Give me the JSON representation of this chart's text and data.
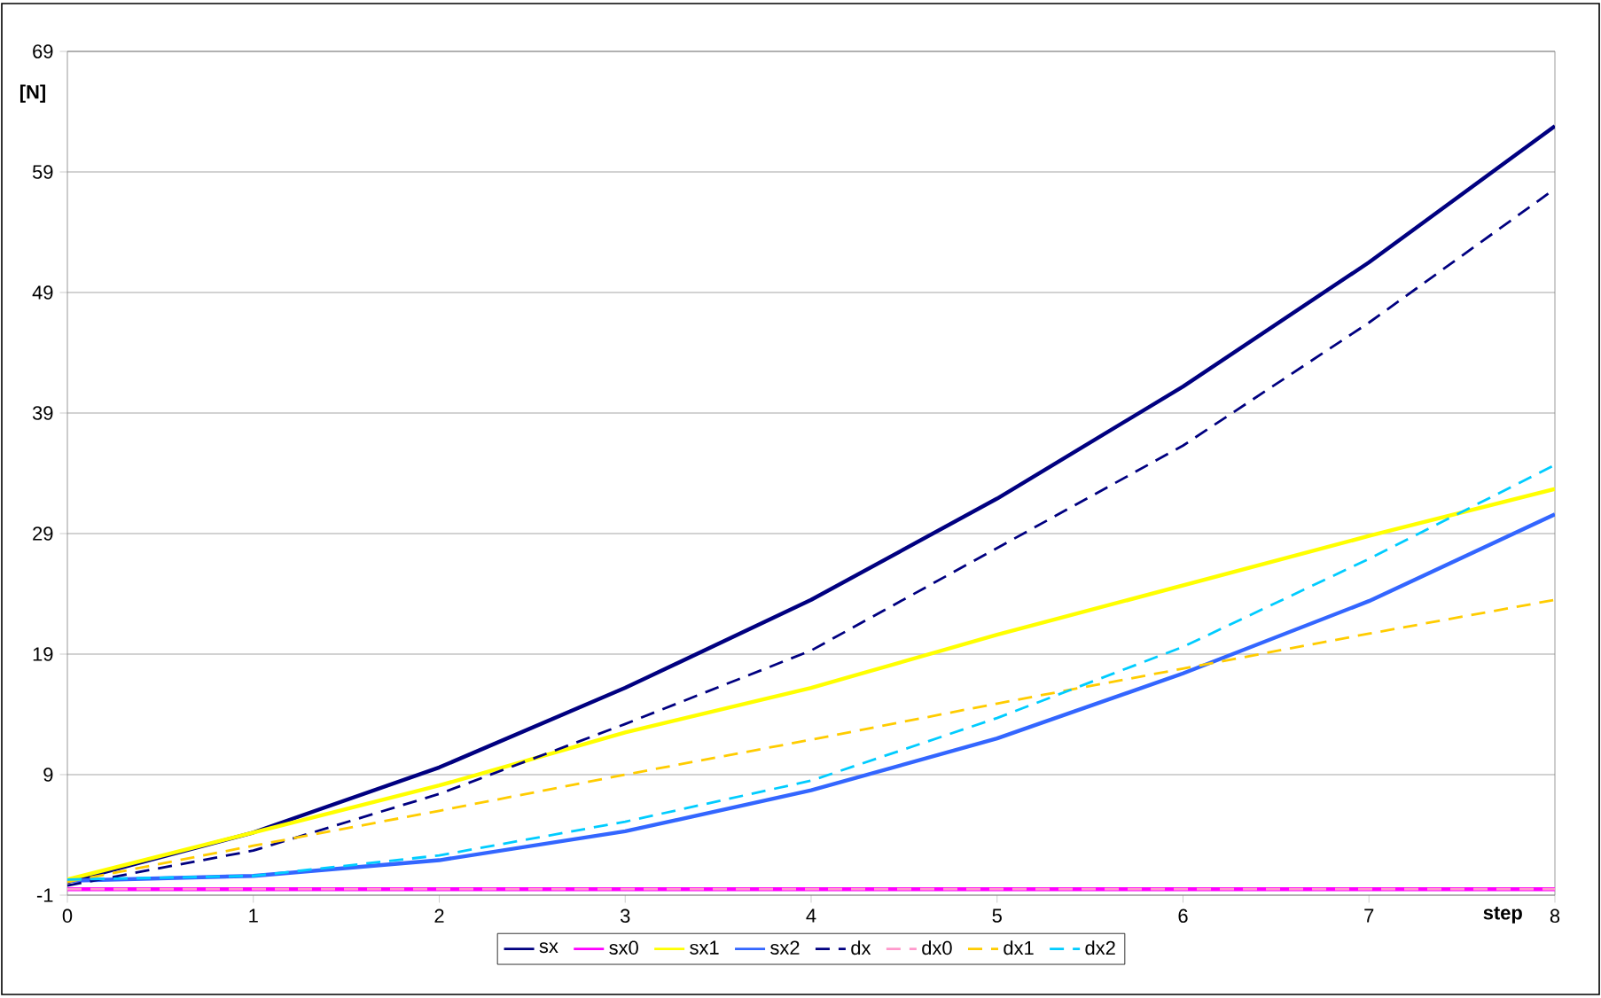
{
  "chart_data": {
    "type": "line",
    "xlabel": "step",
    "ylabel": "[N]",
    "x": [
      0,
      1,
      2,
      3,
      4,
      5,
      6,
      7,
      8
    ],
    "xlim": [
      0,
      8
    ],
    "xticks": [
      0,
      1,
      2,
      3,
      4,
      5,
      6,
      7,
      8
    ],
    "ylim": [
      -1,
      69
    ],
    "yticks": [
      -1,
      9,
      19,
      29,
      39,
      49,
      59,
      69
    ],
    "grid": "y",
    "legend": "bottom",
    "marker": "none",
    "series": [
      {
        "name": "sx",
        "color": "#000080",
        "line_style": "solid",
        "values": [
          0.1,
          4.2,
          9.6,
          16.2,
          23.5,
          31.9,
          41.2,
          51.5,
          62.8
        ]
      },
      {
        "name": "sx0",
        "color": "#ff00ff",
        "line_style": "solid",
        "values": [
          -0.5,
          -0.5,
          -0.5,
          -0.5,
          -0.5,
          -0.5,
          -0.5,
          -0.5,
          -0.5
        ]
      },
      {
        "name": "sx1",
        "color": "#ffff00",
        "line_style": "solid",
        "values": [
          0.3,
          4.2,
          8.1,
          12.5,
          16.2,
          20.6,
          24.7,
          28.8,
          32.7
        ]
      },
      {
        "name": "sx2",
        "color": "#3366ff",
        "line_style": "solid",
        "values": [
          0.2,
          0.6,
          1.9,
          4.3,
          7.7,
          12.0,
          17.4,
          23.4,
          30.6
        ]
      },
      {
        "name": "dx",
        "color": "#000080",
        "line_style": "dashed",
        "values": [
          -0.2,
          2.7,
          7.4,
          13.2,
          19.3,
          27.8,
          36.3,
          46.5,
          57.6
        ]
      },
      {
        "name": "dx0",
        "color": "#ff99cc",
        "line_style": "dashed",
        "values": [
          -0.5,
          -0.5,
          -0.5,
          -0.5,
          -0.5,
          -0.5,
          -0.5,
          -0.5,
          -0.5
        ]
      },
      {
        "name": "dx1",
        "color": "#ffcc00",
        "line_style": "dashed",
        "values": [
          0.1,
          3.1,
          6.0,
          9.0,
          11.9,
          14.9,
          17.8,
          20.7,
          23.5
        ]
      },
      {
        "name": "dx2",
        "color": "#00ccff",
        "line_style": "dashed",
        "values": [
          0.3,
          0.6,
          2.3,
          5.1,
          8.5,
          13.7,
          19.6,
          26.9,
          34.7
        ]
      }
    ]
  }
}
